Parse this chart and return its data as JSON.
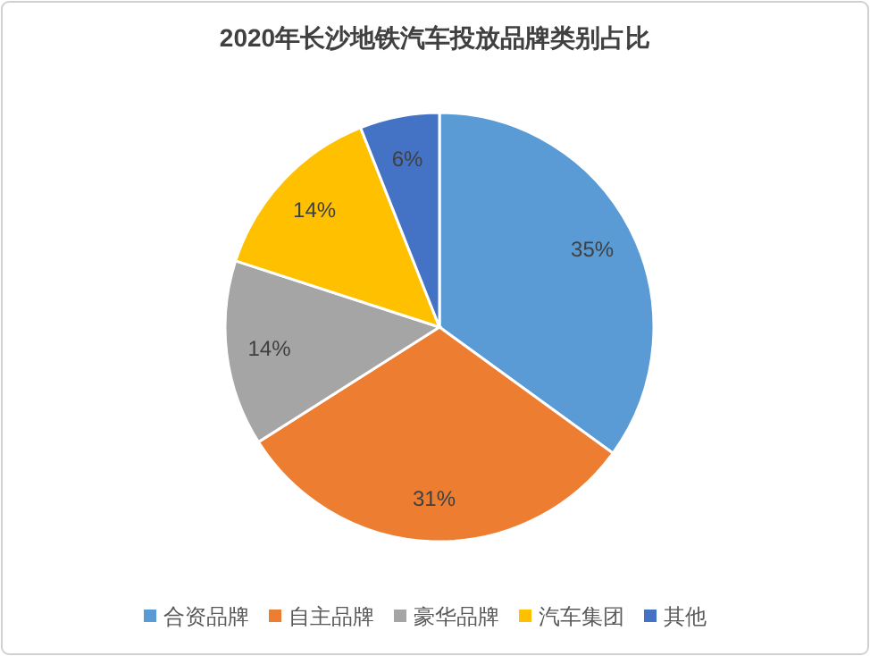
{
  "chart_data": {
    "type": "pie",
    "title": "2020年长沙地铁汽车投放品牌类别占比",
    "categories": [
      "合资品牌",
      "自主品牌",
      "豪华品牌",
      "汽车集团",
      "其他"
    ],
    "values": [
      35,
      31,
      14,
      14,
      6
    ],
    "colors": [
      "#5b9bd5",
      "#ed7d31",
      "#a5a5a5",
      "#ffc000",
      "#4472c4"
    ],
    "value_labels": [
      "35%",
      "31%",
      "14%",
      "14%",
      "6%"
    ],
    "legend": "bottom"
  }
}
